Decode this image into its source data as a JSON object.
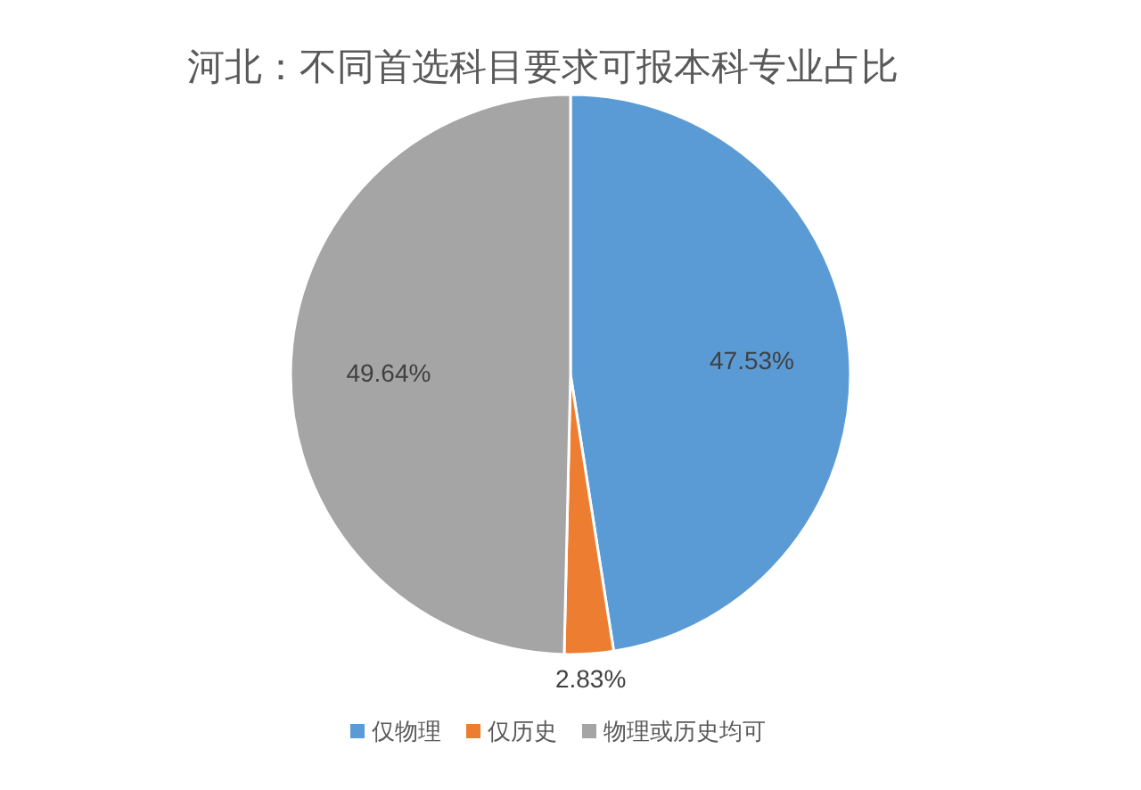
{
  "chart_data": {
    "type": "pie",
    "title": "河北：不同首选科目要求可报本科专业占比",
    "categories": [
      "仅物理",
      "仅历史",
      "物理或历史均可"
    ],
    "values": [
      47.53,
      2.83,
      49.64
    ],
    "colors": [
      "#5b9bd5",
      "#ed7d31",
      "#a5a5a5"
    ],
    "value_labels": [
      "47.53%",
      "2.83%",
      "49.64%"
    ],
    "legend": "bottom"
  }
}
